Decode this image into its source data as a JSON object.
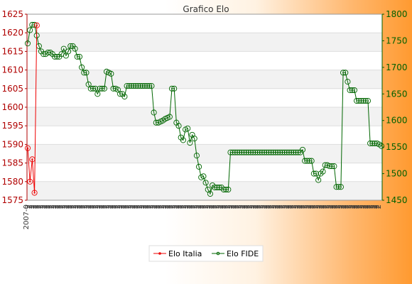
{
  "chart_data": {
    "type": "line",
    "title": "Grafico Elo",
    "legend_position": "bottom-center",
    "grid": true,
    "axes": {
      "left": {
        "min": 1575,
        "max": 1625,
        "ticks": [
          1575,
          1580,
          1585,
          1590,
          1595,
          1600,
          1605,
          1610,
          1615,
          1620,
          1625
        ],
        "color": "#b00000"
      },
      "right": {
        "min": 1450,
        "max": 1800,
        "ticks": [
          1450,
          1500,
          1550,
          1600,
          1650,
          1700,
          1750,
          1800
        ],
        "color": "#006000"
      }
    },
    "x_tick_labels": [
      "2007-0",
      "2",
      "2",
      "2",
      "2",
      "2",
      "2",
      "2",
      "2",
      "2",
      "2",
      "2",
      "2",
      "2",
      "2",
      "2",
      "2",
      "2",
      "2",
      "2",
      "2",
      "2",
      "2",
      "2",
      "2",
      "2",
      "2",
      "2",
      "2",
      "2",
      "2",
      "2",
      "2",
      "2",
      "2",
      "2",
      "2",
      "2",
      "2",
      "2",
      "2",
      "2",
      "2",
      "2",
      "2",
      "2",
      "2",
      "2",
      "2",
      "2",
      "2",
      "2",
      "2",
      "2",
      "2",
      "2",
      "2",
      "2",
      "2",
      "2",
      "2",
      "2",
      "2",
      "2",
      "2",
      "2",
      "2",
      "2",
      "2",
      "2",
      "2",
      "2",
      "2",
      "2",
      "2",
      "2",
      "2",
      "2",
      "2",
      "2",
      "2",
      "2",
      "2",
      "2",
      "2",
      "2",
      "2",
      "2",
      "2",
      "2",
      "2",
      "2",
      "2",
      "2",
      "2",
      "2",
      "2",
      "2",
      "2",
      "2",
      "2",
      "2",
      "2",
      "2",
      "2",
      "2",
      "2",
      "2",
      "2",
      "2",
      "2",
      "2",
      "2",
      "2",
      "2",
      "2",
      "2",
      "2",
      "2",
      "2",
      "2",
      "2",
      "2",
      "2",
      "2",
      "2",
      "2",
      "2",
      "2",
      "2",
      "2",
      "2",
      "2",
      "2",
      "2",
      "2",
      "2",
      "2",
      "2",
      "2",
      "2",
      "2",
      "2",
      "2",
      "2",
      "2",
      "2",
      "2",
      "2",
      "2",
      "2",
      "2",
      "2",
      "2",
      "2",
      "2",
      "2",
      "2",
      "2",
      "2",
      "2",
      "2",
      "2",
      "2",
      "2",
      "2",
      "2",
      "2",
      "2",
      "2",
      "2",
      "2",
      "2",
      "2",
      "2",
      "2",
      "2",
      "2",
      "2",
      "2",
      "2",
      "2",
      "2",
      "2",
      "2",
      "2",
      "2",
      "2",
      "2",
      "2",
      "2",
      "2",
      "2"
    ],
    "series": [
      {
        "name": "Elo Italia",
        "axis": "left",
        "color": "#ee0000",
        "marker": "dot",
        "values": [
          1589,
          1580,
          1586,
          1577,
          1622
        ]
      },
      {
        "name": "Elo FIDE",
        "axis": "right",
        "color": "#006600",
        "marker": "open-circle",
        "values": [
          1745,
          1770,
          1780,
          1780,
          1760,
          1740,
          1730,
          1725,
          1725,
          1728,
          1728,
          1725,
          1720,
          1720,
          1720,
          1725,
          1735,
          1722,
          1730,
          1740,
          1740,
          1735,
          1720,
          1720,
          1700,
          1690,
          1690,
          1668,
          1660,
          1660,
          1660,
          1650,
          1660,
          1660,
          1660,
          1692,
          1690,
          1688,
          1660,
          1660,
          1658,
          1650,
          1650,
          1645,
          1665,
          1665,
          1665,
          1665,
          1665,
          1665,
          1665,
          1665,
          1665,
          1665,
          1665,
          1665,
          1615,
          1596,
          1596,
          1598,
          1600,
          1603,
          1605,
          1607,
          1660,
          1660,
          1596,
          1590,
          1568,
          1563,
          1583,
          1585,
          1558,
          1573,
          1566,
          1534,
          1513,
          1493,
          1495,
          1483,
          1470,
          1462,
          1478,
          1474,
          1474,
          1474,
          1474,
          1470,
          1470,
          1470,
          1540,
          1540,
          1540,
          1540,
          1540,
          1540,
          1540,
          1540,
          1540,
          1540,
          1540,
          1540,
          1540,
          1540,
          1540,
          1540,
          1540,
          1540,
          1540,
          1540,
          1540,
          1540,
          1540,
          1540,
          1540,
          1540,
          1540,
          1540,
          1540,
          1540,
          1540,
          1540,
          1545,
          1524,
          1524,
          1524,
          1524,
          1500,
          1500,
          1488,
          1500,
          1504,
          1516,
          1516,
          1514,
          1514,
          1514,
          1475,
          1475,
          1475,
          1690,
          1690,
          1673,
          1657,
          1657,
          1657,
          1637,
          1637,
          1637,
          1637,
          1637,
          1637,
          1557,
          1557,
          1557,
          1557,
          1555,
          1552
        ]
      }
    ]
  }
}
